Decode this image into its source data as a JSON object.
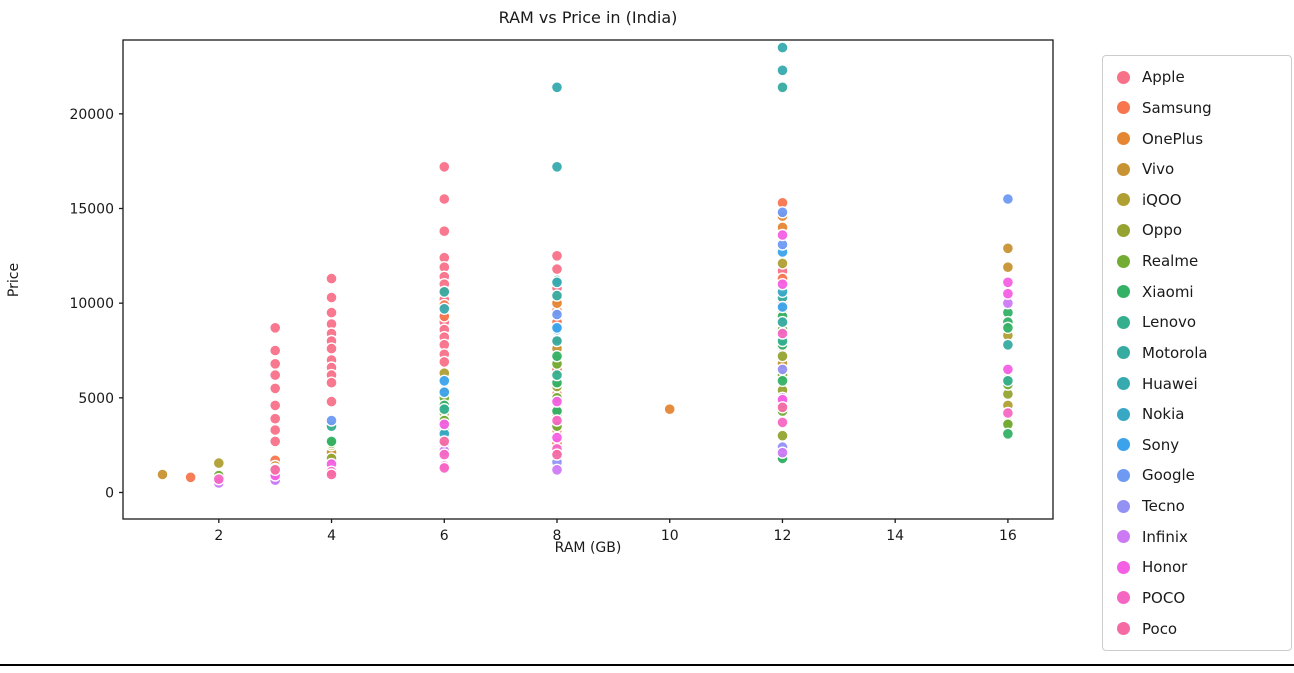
{
  "chart_data": {
    "type": "scatter",
    "title": "RAM vs Price in (India)",
    "xlabel": "RAM (GB)",
    "ylabel": "Price",
    "xlim": [
      0.3,
      16.8
    ],
    "ylim": [
      -1400,
      23900
    ],
    "xticks": [
      2,
      4,
      6,
      8,
      10,
      12,
      14,
      16
    ],
    "yticks": [
      0,
      5000,
      10000,
      15000,
      20000
    ],
    "grid": false,
    "legend_position": "right",
    "series": [
      {
        "name": "Apple",
        "color": "#f77189",
        "points": [
          [
            3,
            8700
          ],
          [
            3,
            7500
          ],
          [
            3,
            6800
          ],
          [
            3,
            6200
          ],
          [
            3,
            5500
          ],
          [
            3,
            4600
          ],
          [
            3,
            3900
          ],
          [
            3,
            3300
          ],
          [
            3,
            2700
          ],
          [
            4,
            11300
          ],
          [
            4,
            10300
          ],
          [
            4,
            9500
          ],
          [
            4,
            8900
          ],
          [
            4,
            8400
          ],
          [
            4,
            8000
          ],
          [
            4,
            7600
          ],
          [
            4,
            7000
          ],
          [
            4,
            6600
          ],
          [
            4,
            6200
          ],
          [
            4,
            5800
          ],
          [
            4,
            4800
          ],
          [
            6,
            17200
          ],
          [
            6,
            15500
          ],
          [
            6,
            13800
          ],
          [
            6,
            12400
          ],
          [
            6,
            11900
          ],
          [
            6,
            11400
          ],
          [
            6,
            11000
          ],
          [
            6,
            10600
          ],
          [
            6,
            10200
          ],
          [
            6,
            9800
          ],
          [
            6,
            9400
          ],
          [
            6,
            9000
          ],
          [
            6,
            8600
          ],
          [
            6,
            8200
          ],
          [
            6,
            7800
          ],
          [
            6,
            7300
          ],
          [
            6,
            6900
          ],
          [
            8,
            12500
          ],
          [
            8,
            11800
          ],
          [
            8,
            10800
          ],
          [
            8,
            9900
          ],
          [
            8,
            9300
          ],
          [
            8,
            2400
          ],
          [
            12,
            14700
          ],
          [
            12,
            11700
          ]
        ]
      },
      {
        "name": "Samsung",
        "color": "#f7754f",
        "points": [
          [
            1.5,
            800
          ],
          [
            3,
            1700
          ],
          [
            4,
            2300
          ],
          [
            4,
            1600
          ],
          [
            6,
            9900
          ],
          [
            6,
            9300
          ],
          [
            6,
            4700
          ],
          [
            6,
            3600
          ],
          [
            6,
            2900
          ],
          [
            8,
            10200
          ],
          [
            8,
            9600
          ],
          [
            8,
            9000
          ],
          [
            8,
            6500
          ],
          [
            8,
            5200
          ],
          [
            8,
            4100
          ],
          [
            8,
            3300
          ],
          [
            8,
            2600
          ],
          [
            12,
            15300
          ],
          [
            12,
            11300
          ],
          [
            12,
            10000
          ],
          [
            12,
            8800
          ],
          [
            12,
            7700
          ],
          [
            12,
            6600
          ]
        ]
      },
      {
        "name": "OnePlus",
        "color": "#e58633",
        "points": [
          [
            6,
            3900
          ],
          [
            8,
            10000
          ],
          [
            8,
            7000
          ],
          [
            10,
            4400
          ],
          [
            12,
            14600
          ],
          [
            12,
            14000
          ],
          [
            12,
            9700
          ]
        ]
      },
      {
        "name": "Vivo",
        "color": "#c89333",
        "points": [
          [
            1,
            950
          ],
          [
            3,
            1400
          ],
          [
            4,
            2100
          ],
          [
            6,
            5400
          ],
          [
            8,
            7600
          ],
          [
            12,
            9500
          ],
          [
            12,
            6800
          ],
          [
            16,
            12900
          ],
          [
            16,
            11900
          ]
        ]
      },
      {
        "name": "iQOO",
        "color": "#b09f33",
        "points": [
          [
            2,
            1550
          ],
          [
            4,
            2500
          ],
          [
            6,
            6300
          ],
          [
            8,
            8100
          ],
          [
            12,
            12100
          ],
          [
            12,
            8200
          ],
          [
            16,
            8300
          ],
          [
            16,
            6000
          ],
          [
            16,
            4600
          ]
        ]
      },
      {
        "name": "Oppo",
        "color": "#96a331",
        "points": [
          [
            3,
            1100
          ],
          [
            4,
            1800
          ],
          [
            6,
            4200
          ],
          [
            6,
            3400
          ],
          [
            8,
            5600
          ],
          [
            8,
            4400
          ],
          [
            12,
            7200
          ],
          [
            12,
            5400
          ],
          [
            12,
            3000
          ],
          [
            16,
            5200
          ],
          [
            16,
            3700
          ]
        ]
      },
      {
        "name": "Realme",
        "color": "#72ac33",
        "points": [
          [
            2,
            900
          ],
          [
            3,
            1250
          ],
          [
            4,
            2600
          ],
          [
            6,
            5000
          ],
          [
            6,
            3800
          ],
          [
            6,
            2800
          ],
          [
            8,
            6800
          ],
          [
            8,
            5000
          ],
          [
            8,
            3500
          ],
          [
            12,
            8600
          ],
          [
            12,
            6200
          ],
          [
            12,
            4300
          ],
          [
            12,
            1900
          ],
          [
            16,
            5700
          ],
          [
            16,
            3600
          ]
        ]
      },
      {
        "name": "Xiaomi",
        "color": "#33b165",
        "points": [
          [
            3,
            1000
          ],
          [
            4,
            2700
          ],
          [
            6,
            4600
          ],
          [
            6,
            3300
          ],
          [
            8,
            7200
          ],
          [
            8,
            5800
          ],
          [
            8,
            4300
          ],
          [
            12,
            9300
          ],
          [
            12,
            7800
          ],
          [
            12,
            5900
          ],
          [
            12,
            1800
          ],
          [
            16,
            9500
          ],
          [
            16,
            9000
          ],
          [
            16,
            8700
          ],
          [
            16,
            3100
          ]
        ]
      },
      {
        "name": "Lenovo",
        "color": "#34af8d",
        "points": [
          [
            4,
            3500
          ],
          [
            6,
            4400
          ],
          [
            8,
            6200
          ],
          [
            12,
            8000
          ],
          [
            12,
            4700
          ],
          [
            16,
            5900
          ]
        ]
      },
      {
        "name": "Motorola",
        "color": "#36aba0",
        "points": [
          [
            6,
            10600
          ],
          [
            8,
            11200
          ],
          [
            8,
            10400
          ],
          [
            8,
            8000
          ],
          [
            12,
            21400
          ],
          [
            12,
            10300
          ],
          [
            12,
            9000
          ],
          [
            16,
            7800
          ]
        ]
      },
      {
        "name": "Huawei",
        "color": "#37aaaf",
        "points": [
          [
            6,
            9700
          ],
          [
            8,
            21400
          ],
          [
            8,
            17200
          ],
          [
            8,
            11100
          ],
          [
            12,
            23500
          ],
          [
            12,
            22300
          ]
        ]
      },
      {
        "name": "Nokia",
        "color": "#38a8c5",
        "points": [
          [
            2,
            620
          ],
          [
            3,
            850
          ],
          [
            4,
            1300
          ],
          [
            6,
            3100
          ],
          [
            8,
            8600
          ],
          [
            8,
            2100
          ],
          [
            12,
            10600
          ]
        ]
      },
      {
        "name": "Sony",
        "color": "#3ba3ec",
        "points": [
          [
            6,
            5900
          ],
          [
            6,
            5300
          ],
          [
            8,
            8700
          ],
          [
            12,
            12700
          ],
          [
            12,
            9800
          ]
        ]
      },
      {
        "name": "Google",
        "color": "#6e9af4",
        "points": [
          [
            4,
            3800
          ],
          [
            8,
            9400
          ],
          [
            12,
            14800
          ],
          [
            12,
            13100
          ],
          [
            16,
            15500
          ]
        ]
      },
      {
        "name": "Tecno",
        "color": "#9491f4",
        "points": [
          [
            2,
            550
          ],
          [
            3,
            700
          ],
          [
            4,
            1200
          ],
          [
            6,
            2500
          ],
          [
            8,
            1600
          ],
          [
            12,
            6500
          ],
          [
            12,
            2400
          ]
        ]
      },
      {
        "name": "Infinix",
        "color": "#cc7af4",
        "points": [
          [
            2,
            500
          ],
          [
            3,
            650
          ],
          [
            4,
            1000
          ],
          [
            6,
            2200
          ],
          [
            8,
            1200
          ],
          [
            12,
            5000
          ],
          [
            12,
            2100
          ],
          [
            16,
            10000
          ]
        ]
      },
      {
        "name": "Honor",
        "color": "#f45fe3",
        "points": [
          [
            3,
            900
          ],
          [
            4,
            1500
          ],
          [
            6,
            3600
          ],
          [
            6,
            1400
          ],
          [
            8,
            4800
          ],
          [
            8,
            2900
          ],
          [
            12,
            13600
          ],
          [
            12,
            11000
          ],
          [
            12,
            4900
          ],
          [
            16,
            11100
          ],
          [
            16,
            10500
          ],
          [
            16,
            6500
          ]
        ]
      },
      {
        "name": "POCO",
        "color": "#f566c3",
        "points": [
          [
            2,
            700
          ],
          [
            4,
            1100
          ],
          [
            6,
            2000
          ],
          [
            6,
            1300
          ],
          [
            8,
            3800
          ],
          [
            8,
            2300
          ],
          [
            12,
            8400
          ],
          [
            12,
            3700
          ],
          [
            16,
            4200
          ]
        ]
      },
      {
        "name": "Poco",
        "color": "#f56aa3",
        "points": [
          [
            3,
            1200
          ],
          [
            4,
            950
          ],
          [
            6,
            2700
          ],
          [
            8,
            2000
          ],
          [
            12,
            4500
          ]
        ]
      }
    ]
  },
  "frame": {
    "plot_border_color": "#1a1a1a",
    "legend_border_color": "#cccccc"
  }
}
